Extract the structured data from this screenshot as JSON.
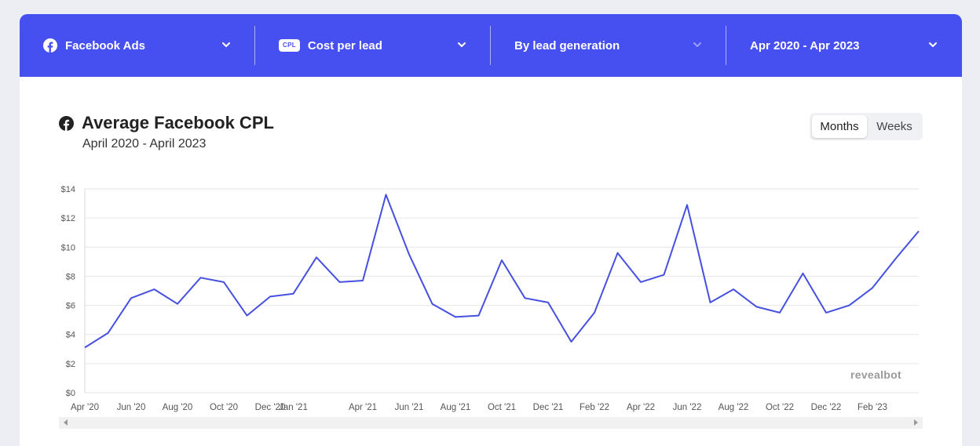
{
  "filters": [
    {
      "label": "Facebook Ads",
      "icon": "facebook-icon"
    },
    {
      "label": "Cost per lead",
      "badge": "CPL",
      "icon": "cpl-badge"
    },
    {
      "label": "By lead generation",
      "icon": "none"
    },
    {
      "label": "Apr 2020 - Apr 2023",
      "icon": "none"
    }
  ],
  "colors": {
    "accent": "#4650f0",
    "line": "#4650e0",
    "grid": "#e6e6e6"
  },
  "toggle": {
    "options": [
      "Months",
      "Weeks"
    ],
    "active": "Months"
  },
  "watermark": "revealbot",
  "chart_data": {
    "type": "line",
    "title": "Average Facebook CPL",
    "subtitle": "April 2020 - April 2023",
    "xlabel": "",
    "ylabel": "",
    "ylim": [
      0,
      14
    ],
    "yticks": [
      "$0",
      "$2",
      "$4",
      "$6",
      "$8",
      "$10",
      "$12",
      "$14"
    ],
    "grid": true,
    "legend": "none",
    "x": [
      "Apr '20",
      "May '20",
      "Jun '20",
      "Jul '20",
      "Aug '20",
      "Sep '20",
      "Oct '20",
      "Nov '20",
      "Dec '20",
      "Jan '21",
      "Feb '21",
      "Mar '21",
      "Apr '21",
      "May '21",
      "Jun '21",
      "Jul '21",
      "Aug '21",
      "Sep '21",
      "Oct '21",
      "Nov '21",
      "Dec '21",
      "Jan '22",
      "Feb '22",
      "Mar '22",
      "Apr '22",
      "May '22",
      "Jun '22",
      "Jul '22",
      "Aug '22",
      "Sep '22",
      "Oct '22",
      "Nov '22",
      "Dec '22",
      "Jan '23",
      "Feb '23",
      "Mar '23",
      "Apr '23"
    ],
    "xtick_labels": [
      "Apr '20",
      "Jun '20",
      "Aug '20",
      "Oct '20",
      "Dec '20",
      "Jan '21",
      "Apr '21",
      "Jun '21",
      "Aug '21",
      "Oct '21",
      "Dec '21",
      "Feb '22",
      "Apr '22",
      "Jun '22",
      "Aug '22",
      "Oct '22",
      "Dec '22",
      "Feb '23"
    ],
    "xtick_index": [
      0,
      2,
      4,
      6,
      8,
      9,
      12,
      14,
      16,
      18,
      20,
      22,
      24,
      26,
      28,
      30,
      32,
      34
    ],
    "series": [
      {
        "values": [
          3.1,
          4.1,
          6.5,
          7.1,
          6.1,
          7.9,
          7.6,
          5.3,
          6.6,
          6.8,
          9.3,
          7.6,
          7.7,
          13.6,
          9.5,
          6.1,
          5.2,
          5.3,
          9.1,
          6.5,
          6.2,
          3.5,
          5.5,
          9.6,
          7.6,
          8.1,
          12.9,
          6.2,
          7.1,
          5.9,
          5.5,
          8.2,
          5.5,
          6.0,
          7.2,
          9.2,
          11.1
        ]
      }
    ]
  }
}
